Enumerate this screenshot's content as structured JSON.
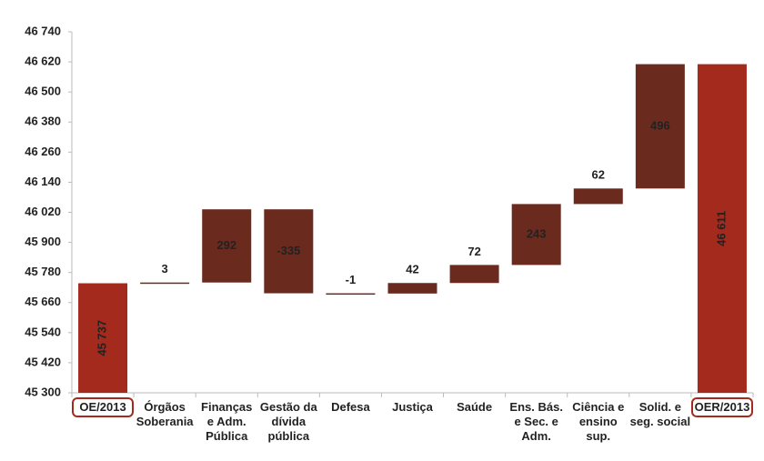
{
  "chart_data": {
    "type": "waterfall",
    "categories": [
      "OE/2013",
      "Órgãos\nSoberania",
      "Finanças\ne Adm.\nPública",
      "Gestão da\ndívida\npública",
      "Defesa",
      "Justiça",
      "Saúde",
      "Ens. Bás.\ne Sec. e\nAdm.",
      "Ciência e\nensino\nsup.",
      "Solid. e\nseg. social",
      "OER/2013"
    ],
    "values": [
      45737,
      3,
      292,
      -335,
      -1,
      42,
      72,
      243,
      62,
      496,
      46611
    ],
    "value_labels": [
      "45 737",
      "3",
      "292",
      "-335",
      "-1",
      "42",
      "72",
      "243",
      "62",
      "496",
      "46 611"
    ],
    "color": "#6b2a1e",
    "total_color": "#a52a1e",
    "ylim": [
      45300,
      46740
    ],
    "yticks": [
      {
        "value": 45300,
        "label": "45 300"
      },
      {
        "value": 45420,
        "label": "45 420"
      },
      {
        "value": 45540,
        "label": "45 540"
      },
      {
        "value": 45660,
        "label": "45 660"
      },
      {
        "value": 45780,
        "label": "45 780"
      },
      {
        "value": 45900,
        "label": "45 900"
      },
      {
        "value": 46020,
        "label": "46 020"
      },
      {
        "value": 46140,
        "label": "46 140"
      },
      {
        "value": 46260,
        "label": "46 260"
      },
      {
        "value": 46380,
        "label": "46 380"
      },
      {
        "value": 46500,
        "label": "46 500"
      },
      {
        "value": 46620,
        "label": "46 620"
      },
      {
        "value": 46740,
        "label": "46 740"
      }
    ],
    "grid": false
  }
}
